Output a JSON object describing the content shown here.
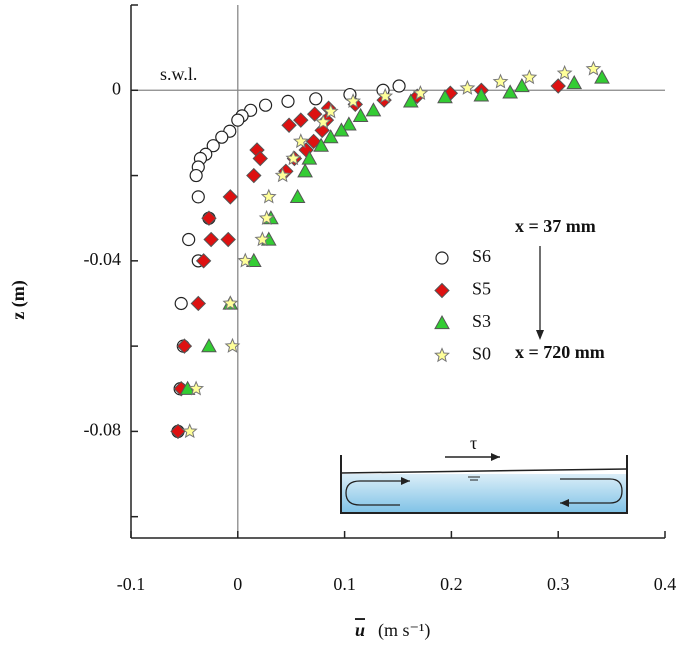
{
  "chart_data": {
    "type": "scatter",
    "x_label": "u",
    "x_label_unit": "(m s⁻¹)",
    "y_label": "z (m)",
    "xlim": [
      -0.1,
      0.4
    ],
    "ylim": [
      -0.105,
      0.02
    ],
    "xticks": [
      -0.1,
      0,
      0.1,
      0.2,
      0.3,
      0.4
    ],
    "yticks": [
      0,
      -0.04,
      -0.08
    ],
    "yminor_ticks": [
      0.02,
      -0.02,
      -0.06,
      -0.1
    ],
    "zero_lines": true,
    "annotations": {
      "swl": "s.w.l.",
      "start": "x = 37 mm",
      "end": "x = 720 mm",
      "stress": "τ"
    },
    "series": [
      {
        "name": "S6",
        "marker": "circle",
        "color": "#ffffff",
        "x": [
          0.151,
          0.136,
          0.105,
          0.073,
          0.047,
          0.026,
          0.012,
          0.004,
          0,
          -0.0075,
          -0.015,
          -0.023,
          -0.03,
          -0.035,
          -0.037,
          -0.039,
          -0.037,
          -0.027,
          -0.046,
          -0.037,
          -0.053,
          -0.051,
          -0.054,
          -0.056
        ],
        "y": [
          0.001,
          0,
          -0.001,
          -0.002,
          -0.0026,
          -0.0035,
          -0.0047,
          -0.006,
          -0.007,
          -0.0096,
          -0.011,
          -0.013,
          -0.015,
          -0.016,
          -0.018,
          -0.02,
          -0.025,
          -0.03,
          -0.035,
          -0.04,
          -0.05,
          -0.06,
          -0.07,
          -0.08
        ]
      },
      {
        "name": "S5",
        "marker": "diamond",
        "color": "#dd1111",
        "x": [
          0.3,
          0.228,
          0.199,
          0.168,
          0.137,
          0.11,
          0.085,
          0.072,
          0.059,
          0.048,
          0.083,
          0.079,
          0.071,
          0.064,
          0.053,
          0.045,
          0.018,
          0.021,
          0.015,
          -0.007,
          -0.009,
          -0.027,
          -0.025,
          -0.032,
          -0.037,
          -0.05,
          -0.053,
          -0.056
        ],
        "y": [
          0.001,
          0,
          -0.0007,
          -0.0014,
          -0.0023,
          -0.0033,
          -0.0042,
          -0.0056,
          -0.007,
          -0.0082,
          -0.007,
          -0.0094,
          -0.012,
          -0.014,
          -0.016,
          -0.019,
          -0.014,
          -0.016,
          -0.02,
          -0.025,
          -0.035,
          -0.03,
          -0.035,
          -0.04,
          -0.05,
          -0.06,
          -0.07,
          -0.08
        ]
      },
      {
        "name": "S3",
        "marker": "triangle",
        "color": "#33cc33",
        "x": [
          0.341,
          0.315,
          0.266,
          0.255,
          0.228,
          0.194,
          0.162,
          0.127,
          0.115,
          0.104,
          0.097,
          0.087,
          0.078,
          0.067,
          0.063,
          0.056,
          0.031,
          0.029,
          0.015,
          -0.007,
          -0.027,
          -0.047
        ],
        "y": [
          0.003,
          0.0017,
          0.001,
          -0.0005,
          -0.0012,
          -0.0016,
          -0.0026,
          -0.0047,
          -0.006,
          -0.008,
          -0.0094,
          -0.011,
          -0.013,
          -0.016,
          -0.019,
          -0.025,
          -0.03,
          -0.035,
          -0.04,
          -0.05,
          -0.06,
          -0.07
        ]
      },
      {
        "name": "S0",
        "marker": "star",
        "color": "#ffff99",
        "x": [
          0.333,
          0.306,
          0.273,
          0.246,
          0.215,
          0.171,
          0.138,
          0.108,
          0.087,
          0.08,
          0.059,
          0.052,
          0.042,
          0.029,
          0.027,
          0.023,
          0.007,
          -0.007,
          -0.005,
          -0.039,
          -0.045
        ],
        "y": [
          0.005,
          0.004,
          0.003,
          0.002,
          0.0005,
          -0.0007,
          -0.0014,
          -0.0026,
          -0.005,
          -0.0075,
          -0.012,
          -0.016,
          -0.02,
          -0.025,
          -0.03,
          -0.035,
          -0.04,
          -0.05,
          -0.06,
          -0.07,
          -0.08
        ]
      }
    ]
  }
}
